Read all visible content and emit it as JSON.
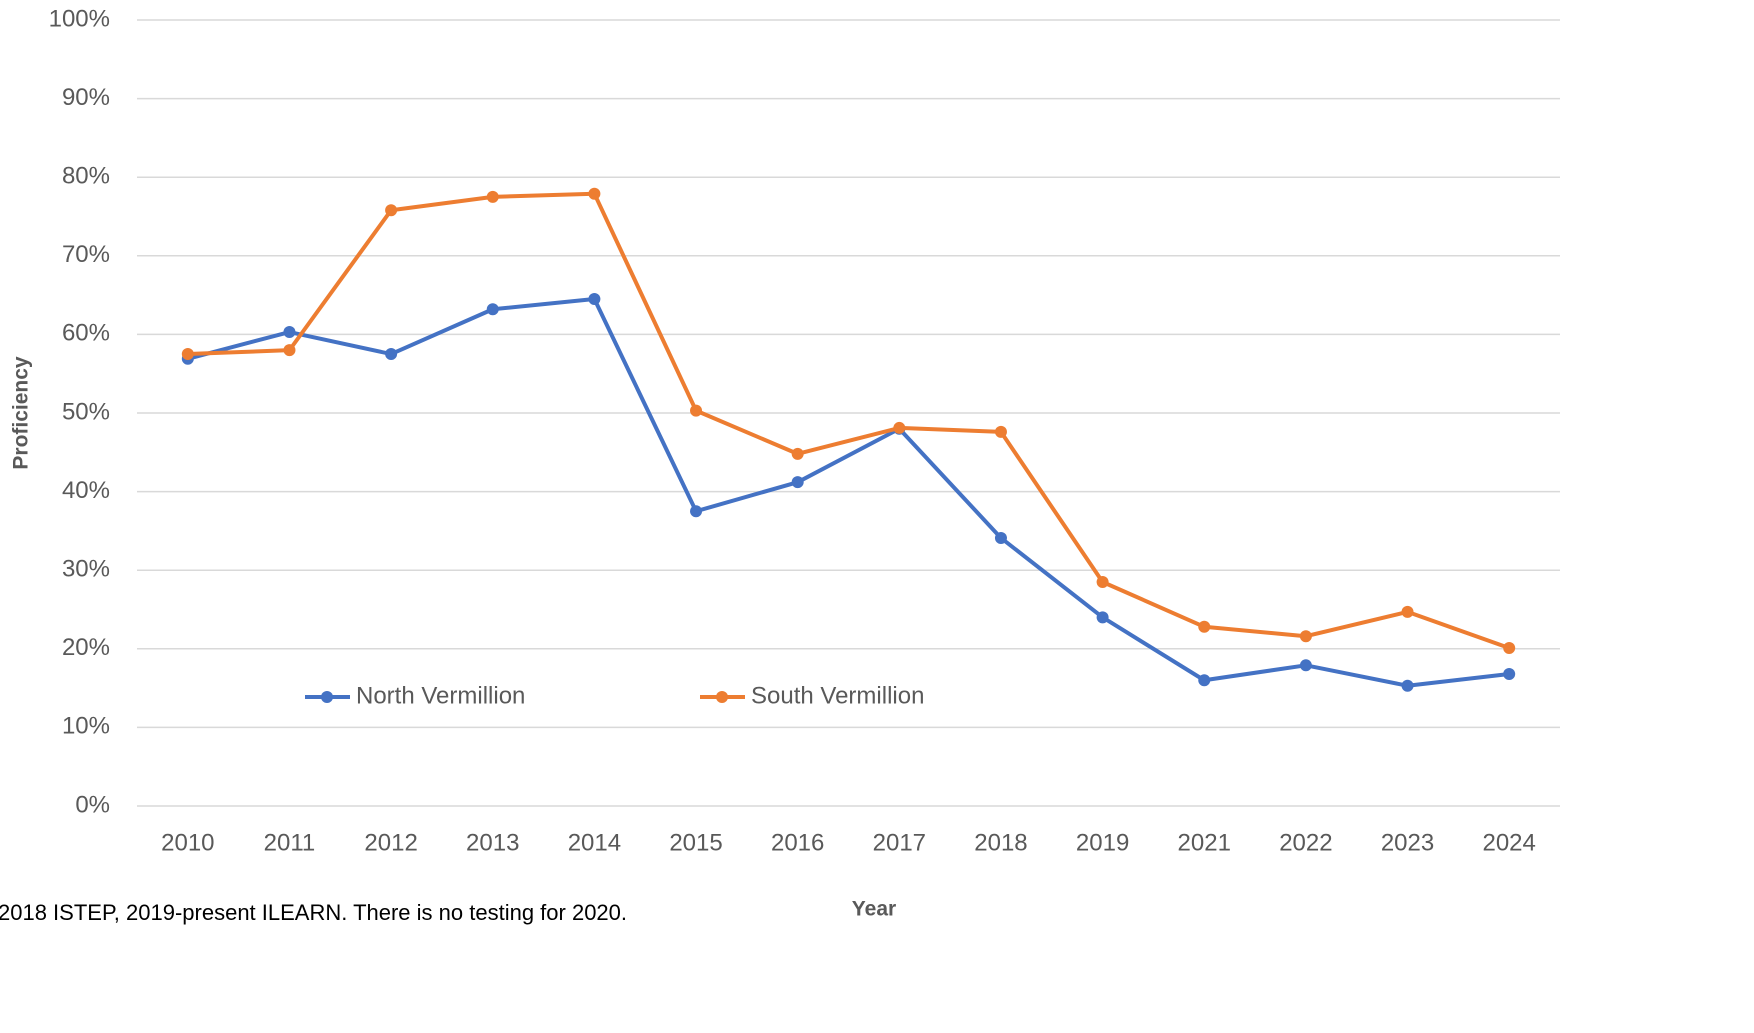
{
  "chart_data": {
    "type": "line",
    "x_label": "Year",
    "y_label": "Proficiency",
    "note": "2018 ISTEP, 2019-present ILEARN. There is no testing for 2020.",
    "categories": [
      "2010",
      "2011",
      "2012",
      "2013",
      "2014",
      "2015",
      "2016",
      "2017",
      "2018",
      "2019",
      "2021",
      "2022",
      "2023",
      "2024"
    ],
    "series": [
      {
        "name": "North Vermillion",
        "color": "#4472c4",
        "values": [
          56.9,
          60.3,
          57.5,
          63.2,
          64.5,
          37.5,
          41.2,
          48.0,
          34.1,
          24.0,
          16.0,
          17.9,
          15.3,
          16.8
        ]
      },
      {
        "name": "South Vermillion",
        "color": "#ed7d31",
        "values": [
          57.5,
          58.0,
          75.8,
          77.5,
          77.9,
          50.3,
          44.8,
          48.1,
          47.6,
          28.5,
          22.8,
          21.6,
          24.7,
          20.1
        ]
      }
    ],
    "ylim": [
      0,
      100
    ],
    "yticks": [
      {
        "value": 0,
        "label": "0%"
      },
      {
        "value": 10,
        "label": "10%"
      },
      {
        "value": 20,
        "label": "20%"
      },
      {
        "value": 30,
        "label": "30%"
      },
      {
        "value": 40,
        "label": "40%"
      },
      {
        "value": 50,
        "label": "50%"
      },
      {
        "value": 60,
        "label": "60%"
      },
      {
        "value": 70,
        "label": "70%"
      },
      {
        "value": 80,
        "label": "80%"
      },
      {
        "value": 90,
        "label": "90%"
      },
      {
        "value": 100,
        "label": "100%"
      }
    ],
    "grid": true,
    "legend": "inside-bottom-left"
  }
}
